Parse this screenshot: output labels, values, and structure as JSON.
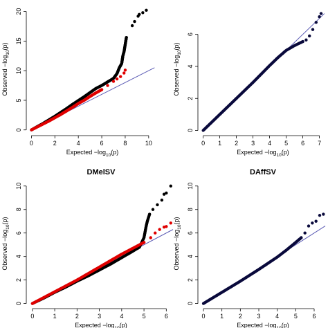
{
  "colors": {
    "black_series": "#000000",
    "red_series": "#e00000",
    "navy_series": "#0a0a3c",
    "reference_line": "#5b5bb4",
    "background": "#ffffff"
  },
  "chart_data": [
    {
      "type": "scatter",
      "title": "",
      "xlabel_parts": [
        "Expected  −log",
        "10",
        "(p)"
      ],
      "ylabel_parts": [
        "Observed  −log",
        "10",
        "(p)"
      ],
      "xlim": [
        -0.2,
        10.6
      ],
      "ylim": [
        -0.5,
        21
      ],
      "xticks": [
        0,
        2,
        4,
        6,
        8,
        10
      ],
      "yticks": [
        0,
        5,
        10,
        15,
        20
      ],
      "reference_line": {
        "x": [
          0,
          10.5
        ],
        "y": [
          0,
          10.5
        ]
      },
      "grid": false,
      "series": [
        {
          "color": "black",
          "points": [
            [
              0,
              0
            ],
            [
              0.5,
              0.55
            ],
            [
              1,
              1.1
            ],
            [
              1.5,
              1.7
            ],
            [
              2,
              2.3
            ],
            [
              2.5,
              2.95
            ],
            [
              3,
              3.6
            ],
            [
              3.5,
              4.3
            ],
            [
              4,
              4.95
            ],
            [
              4.5,
              5.6
            ],
            [
              5,
              6.3
            ],
            [
              5.5,
              7.0
            ],
            [
              6,
              7.5
            ],
            [
              6.5,
              8.1
            ],
            [
              7,
              8.7
            ],
            [
              7.3,
              9.5
            ],
            [
              7.5,
              10.5
            ],
            [
              7.7,
              11.2
            ],
            [
              7.8,
              12.5
            ],
            [
              7.9,
              13.2
            ],
            [
              8.1,
              15.6
            ],
            [
              8.6,
              17.6
            ],
            [
              8.8,
              18.3
            ],
            [
              9.1,
              19.2
            ],
            [
              9.2,
              19.5
            ],
            [
              9.5,
              19.8
            ],
            [
              9.8,
              20.2
            ]
          ]
        },
        {
          "color": "red",
          "points": [
            [
              0,
              0
            ],
            [
              0.5,
              0.5
            ],
            [
              1,
              1.0
            ],
            [
              1.5,
              1.5
            ],
            [
              2,
              2.05
            ],
            [
              2.5,
              2.6
            ],
            [
              3,
              3.2
            ],
            [
              3.5,
              3.8
            ],
            [
              4,
              4.45
            ],
            [
              4.5,
              5.0
            ],
            [
              5,
              5.65
            ],
            [
              5.5,
              6.25
            ],
            [
              6,
              6.8
            ],
            [
              6.5,
              7.5
            ],
            [
              7,
              8.2
            ],
            [
              7.3,
              8.6
            ],
            [
              7.6,
              9.0
            ],
            [
              7.9,
              9.6
            ],
            [
              8.0,
              10.1
            ]
          ]
        }
      ]
    },
    {
      "type": "scatter",
      "title": "",
      "xlabel_parts": [
        "Expected  −log",
        "10",
        "(p)"
      ],
      "ylabel_parts": [
        "Observed  −log",
        "10",
        "(p)"
      ],
      "xlim": [
        -0.15,
        7.35
      ],
      "ylim": [
        -0.15,
        7.8
      ],
      "xticks": [
        0,
        1,
        2,
        3,
        4,
        5,
        6,
        7
      ],
      "yticks": [
        0,
        2,
        4,
        6
      ],
      "reference_line": {
        "x": [
          0,
          7.3
        ],
        "y": [
          0,
          7.3
        ]
      },
      "grid": false,
      "series": [
        {
          "color": "navy",
          "points": [
            [
              0,
              0
            ],
            [
              1,
              1.0
            ],
            [
              2,
              2.0
            ],
            [
              3,
              3.0
            ],
            [
              4,
              4.05
            ],
            [
              4.5,
              4.55
            ],
            [
              5,
              5.0
            ],
            [
              5.5,
              5.3
            ],
            [
              5.8,
              5.45
            ],
            [
              6.0,
              5.55
            ],
            [
              6.2,
              5.65
            ],
            [
              6.4,
              5.9
            ],
            [
              6.6,
              6.3
            ],
            [
              6.8,
              6.75
            ],
            [
              7.0,
              7.1
            ],
            [
              7.1,
              7.3
            ]
          ]
        }
      ]
    },
    {
      "type": "scatter",
      "title": "DMelSV",
      "xlabel_parts": [
        "Expected  −log",
        "10",
        "(p)"
      ],
      "ylabel_parts": [
        "Observed  −log",
        "10",
        "(p)"
      ],
      "xlim": [
        -0.15,
        6.3
      ],
      "ylim": [
        -0.2,
        10.4
      ],
      "xticks": [
        0,
        1,
        2,
        3,
        4,
        5,
        6
      ],
      "yticks": [
        0,
        2,
        4,
        6,
        8,
        10
      ],
      "reference_line": {
        "x": [
          0,
          6.3
        ],
        "y": [
          0,
          6.3
        ]
      },
      "grid": false,
      "series": [
        {
          "color": "black",
          "points": [
            [
              0,
              0
            ],
            [
              0.5,
              0.45
            ],
            [
              1,
              0.95
            ],
            [
              1.5,
              1.4
            ],
            [
              2,
              1.9
            ],
            [
              2.5,
              2.35
            ],
            [
              3,
              2.85
            ],
            [
              3.5,
              3.35
            ],
            [
              4,
              3.9
            ],
            [
              4.5,
              4.45
            ],
            [
              4.8,
              4.8
            ],
            [
              5.0,
              5.6
            ],
            [
              5.1,
              6.6
            ],
            [
              5.15,
              7.0
            ],
            [
              5.25,
              7.6
            ],
            [
              5.4,
              8.0
            ],
            [
              5.6,
              8.4
            ],
            [
              5.8,
              8.8
            ],
            [
              5.9,
              9.3
            ],
            [
              6.0,
              9.4
            ],
            [
              6.2,
              10.0
            ]
          ]
        },
        {
          "color": "red",
          "points": [
            [
              0,
              0
            ],
            [
              0.5,
              0.5
            ],
            [
              1,
              1.0
            ],
            [
              1.5,
              1.5
            ],
            [
              2,
              2.0
            ],
            [
              2.5,
              2.55
            ],
            [
              3,
              3.1
            ],
            [
              3.5,
              3.65
            ],
            [
              4,
              4.2
            ],
            [
              4.5,
              4.7
            ],
            [
              5,
              5.2
            ],
            [
              5.3,
              5.6
            ],
            [
              5.5,
              6.0
            ],
            [
              5.7,
              6.3
            ],
            [
              5.9,
              6.5
            ],
            [
              6.0,
              6.55
            ],
            [
              6.2,
              6.85
            ]
          ]
        }
      ]
    },
    {
      "type": "scatter",
      "title": "DAffSV",
      "xlabel_parts": [
        "Expected  −log",
        "10",
        "(p)"
      ],
      "ylabel_parts": [
        "Observed  −log",
        "10",
        "(p)"
      ],
      "xlim": [
        -0.15,
        6.6
      ],
      "ylim": [
        -0.2,
        10.4
      ],
      "xticks": [
        0,
        1,
        2,
        3,
        4,
        5,
        6
      ],
      "yticks": [
        0,
        2,
        4,
        6,
        8,
        10
      ],
      "reference_line": {
        "x": [
          0,
          6.6
        ],
        "y": [
          0,
          6.6
        ]
      },
      "grid": false,
      "series": [
        {
          "color": "navy",
          "points": [
            [
              0,
              0
            ],
            [
              1,
              0.95
            ],
            [
              2,
              1.9
            ],
            [
              3,
              2.9
            ],
            [
              4,
              3.95
            ],
            [
              4.5,
              4.55
            ],
            [
              5,
              5.2
            ],
            [
              5.3,
              5.6
            ],
            [
              5.5,
              6.0
            ],
            [
              5.7,
              6.6
            ],
            [
              5.9,
              6.85
            ],
            [
              6.1,
              7.0
            ],
            [
              6.3,
              7.5
            ],
            [
              6.5,
              7.6
            ]
          ]
        }
      ]
    }
  ]
}
